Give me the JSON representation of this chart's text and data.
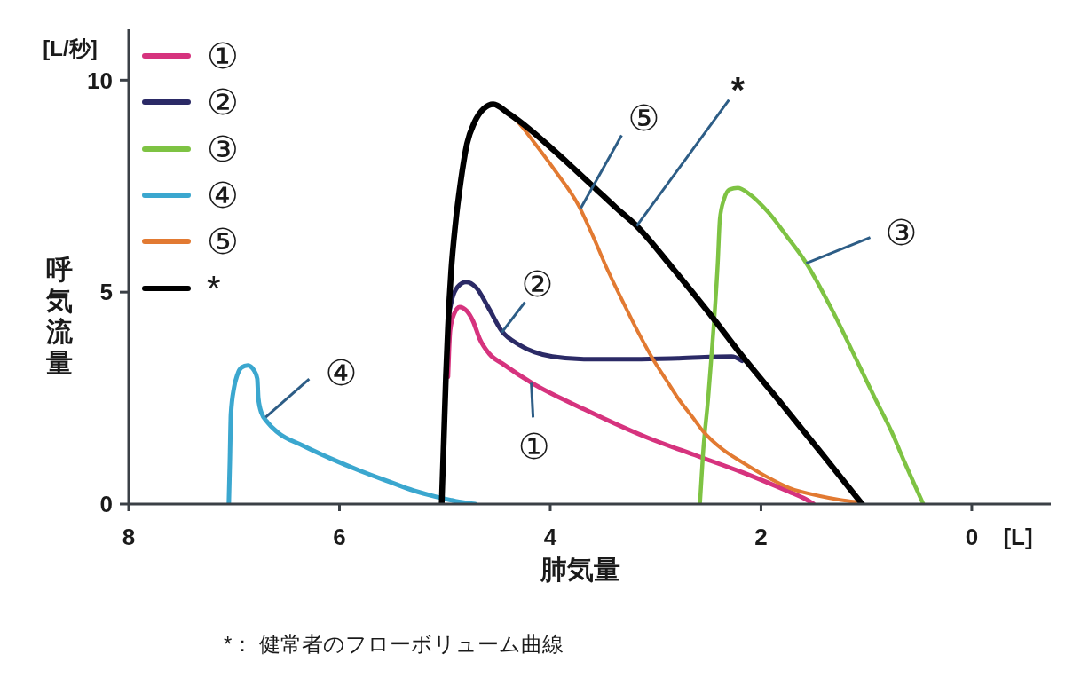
{
  "chart_data": {
    "type": "line",
    "xlabel": "肺気量",
    "ylabel": "呼気流量",
    "xlim": [
      8,
      -0.75
    ],
    "xticks": [
      8,
      6,
      4,
      2,
      0
    ],
    "ylim": [
      0,
      11.2
    ],
    "yticks": [
      0,
      5,
      10
    ],
    "legend": "top left",
    "series": [
      {
        "name": "①",
        "color": "#d6337e",
        "x": [
          4.97,
          4.95,
          4.91,
          4.86,
          4.79,
          4.73,
          4.67,
          4.58,
          4.44,
          4.17,
          3.68,
          3.08,
          2.6,
          2.18,
          1.95,
          1.73,
          1.58,
          1.5
        ],
        "values": [
          3.0,
          4.1,
          4.5,
          4.65,
          4.55,
          4.3,
          3.9,
          3.55,
          3.29,
          2.85,
          2.24,
          1.57,
          1.13,
          0.75,
          0.52,
          0.29,
          0.12,
          0
        ]
      },
      {
        "name": "②",
        "color": "#2b2a66",
        "x": [
          4.96,
          4.93,
          4.88,
          4.8,
          4.7,
          4.59,
          4.46,
          4.29,
          3.98,
          3.68,
          3.2,
          2.78,
          2.28,
          2.18
        ],
        "values": [
          4.5,
          4.85,
          5.12,
          5.24,
          5.1,
          4.65,
          4.08,
          3.75,
          3.48,
          3.42,
          3.42,
          3.44,
          3.48,
          3.38
        ]
      },
      {
        "name": "③",
        "color": "#7ec343",
        "x": [
          2.58,
          2.55,
          2.5,
          2.47,
          2.44,
          2.41,
          2.39,
          2.35,
          2.3,
          2.22,
          2.12,
          1.93,
          1.75,
          1.57,
          1.33,
          1.09,
          0.92,
          0.76,
          0.64,
          0.54,
          0.46
        ],
        "values": [
          0,
          1.2,
          2.54,
          3.5,
          4.5,
          5.7,
          6.73,
          7.2,
          7.42,
          7.46,
          7.33,
          6.88,
          6.3,
          5.68,
          4.6,
          3.38,
          2.5,
          1.7,
          1.0,
          0.44,
          0
        ]
      },
      {
        "name": "④",
        "color": "#3ba7cf",
        "x": [
          7.05,
          7.04,
          7.03,
          7.0,
          6.97,
          6.93,
          6.87,
          6.81,
          6.78,
          6.77,
          6.74,
          6.68,
          6.59,
          6.35,
          6.08,
          5.8,
          5.52,
          5.3,
          5.08,
          4.9,
          4.71
        ],
        "values": [
          0,
          1.0,
          2.12,
          2.75,
          3.04,
          3.22,
          3.27,
          3.15,
          2.96,
          2.5,
          2.15,
          1.92,
          1.7,
          1.38,
          1.07,
          0.78,
          0.52,
          0.32,
          0.17,
          0.07,
          0
        ]
      },
      {
        "name": "⑤",
        "color": "#e27a32",
        "x": [
          4.4,
          4.31,
          4.15,
          3.95,
          3.73,
          3.6,
          3.47,
          3.3,
          3.15,
          3.03,
          2.9,
          2.78,
          2.65,
          2.55,
          2.37,
          2.18,
          1.95,
          1.73,
          1.44,
          1.25,
          1.1
        ],
        "values": [
          9.22,
          9.02,
          8.52,
          7.85,
          7.04,
          6.35,
          5.6,
          4.72,
          3.98,
          3.44,
          2.93,
          2.47,
          2.05,
          1.72,
          1.3,
          0.99,
          0.65,
          0.38,
          0.19,
          0.1,
          0.05
        ]
      },
      {
        "name": "*",
        "color": "#000000",
        "x": [
          5.03,
          5.01,
          4.99,
          4.97,
          4.94,
          4.9,
          4.85,
          4.79,
          4.72,
          4.63,
          4.54,
          4.4,
          4.2,
          4.0,
          3.8,
          3.57,
          3.38,
          3.18,
          2.85,
          2.5,
          2.18,
          1.8,
          1.4,
          1.04
        ],
        "values": [
          0,
          1.5,
          3.0,
          4.2,
          5.5,
          6.6,
          7.6,
          8.5,
          9.0,
          9.33,
          9.43,
          9.22,
          8.85,
          8.42,
          7.97,
          7.44,
          7.0,
          6.56,
          5.6,
          4.53,
          3.5,
          2.35,
          1.12,
          0
        ]
      }
    ],
    "annotations": [
      "[L/秒]",
      "[L]",
      {
        "text": "①",
        "x": 4.18,
        "y": 2.86
      },
      {
        "text": "②",
        "x": 4.46,
        "y": 4.05
      },
      {
        "text": "③",
        "x": 1.57,
        "y": 5.68
      },
      {
        "text": "④",
        "x": 6.7,
        "y": 2.05
      },
      {
        "text": "⑤",
        "x": 3.71,
        "y": 6.98
      },
      {
        "text": "*",
        "x": 3.18,
        "y": 6.56
      },
      "*： 健常者のフローボリューム曲線"
    ]
  }
}
